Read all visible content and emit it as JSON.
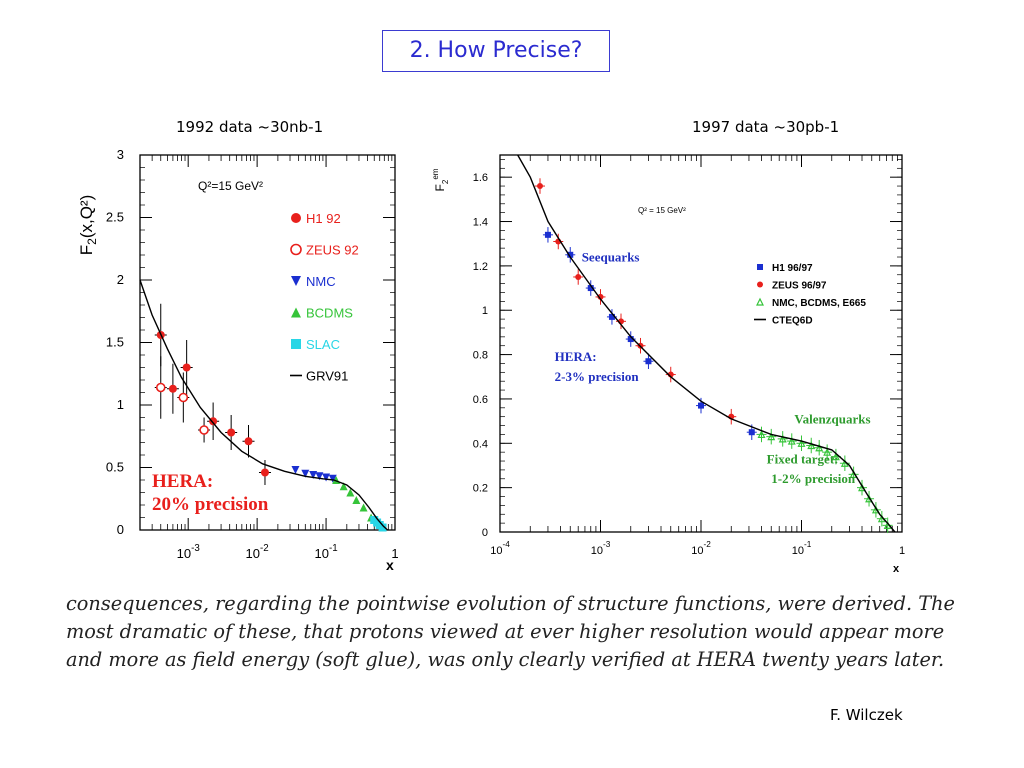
{
  "slide": {
    "title": "2. How Precise?",
    "left_caption": "1992 data  ~30nb-1",
    "right_caption": "1997 data  ~30pb-1",
    "quote_lines": [
      "consequences, regarding the pointwise evolution of structure functions, were derived. The",
      "most dramatic of these, that protons viewed at ever higher resolution would appear more",
      "and more as field energy (soft glue), was only clearly verified at HERA twenty years later."
    ],
    "credit": "F. Wilczek"
  },
  "chart_data": [
    {
      "type": "scatter",
      "x_scale": "log",
      "xlim": [
        0.0002,
        1
      ],
      "ylim": [
        0,
        3
      ],
      "xticks": [
        {
          "v": 0.001,
          "b": "10",
          "e": "-3"
        },
        {
          "v": 0.01,
          "b": "10",
          "e": "-2"
        },
        {
          "v": 0.1,
          "b": "10",
          "e": "-1"
        },
        {
          "v": 1,
          "b": "1",
          "e": ""
        }
      ],
      "yticks": [
        {
          "v": 0,
          "l": "0"
        },
        {
          "v": 0.5,
          "l": "0.5"
        },
        {
          "v": 1,
          "l": "1"
        },
        {
          "v": 1.5,
          "l": "1.5"
        },
        {
          "v": 2,
          "l": "2"
        },
        {
          "v": 2.5,
          "l": "2.5"
        },
        {
          "v": 3,
          "l": "3"
        }
      ],
      "xlabel": "x",
      "ylabel": "F2(x,Q²)",
      "annotation": "Q²=15 GeV²",
      "text_box": [
        "HERA:",
        "20% precision"
      ],
      "text_box_color": "#e8201c",
      "legend_position": "top-right",
      "series": [
        {
          "name": "H1 92",
          "marker": "circle",
          "color": "#e8201c",
          "points": [
            [
              0.0004,
              1.56,
              0.25
            ],
            [
              0.0006,
              1.13,
              0.2
            ],
            [
              0.00095,
              1.3,
              0.22
            ],
            [
              0.0023,
              0.87,
              0.15
            ],
            [
              0.0042,
              0.78,
              0.14
            ],
            [
              0.0075,
              0.71,
              0.13
            ],
            [
              0.013,
              0.46,
              0.1
            ]
          ]
        },
        {
          "name": "ZEUS 92",
          "marker": "circle-open",
          "color": "#e8201c",
          "points": [
            [
              0.0004,
              1.14,
              0.25
            ],
            [
              0.00085,
              1.06,
              0.2
            ],
            [
              0.0017,
              0.8,
              0.1
            ]
          ]
        },
        {
          "name": "NMC",
          "marker": "triangle-down",
          "color": "#1a2fd0",
          "points": [
            [
              0.036,
              0.48,
              0
            ],
            [
              0.05,
              0.45,
              0
            ],
            [
              0.065,
              0.44,
              0
            ],
            [
              0.08,
              0.43,
              0
            ],
            [
              0.1,
              0.42,
              0
            ],
            [
              0.125,
              0.41,
              0
            ]
          ]
        },
        {
          "name": "BCDMS",
          "marker": "triangle-up",
          "color": "#36c43a",
          "points": [
            [
              0.14,
              0.4,
              0
            ],
            [
              0.18,
              0.35,
              0
            ],
            [
              0.225,
              0.3,
              0
            ],
            [
              0.275,
              0.24,
              0
            ],
            [
              0.35,
              0.18,
              0
            ],
            [
              0.45,
              0.1,
              0
            ]
          ]
        },
        {
          "name": "SLAC",
          "marker": "square",
          "color": "#28d6e6",
          "points": [
            [
              0.5,
              0.08,
              0
            ],
            [
              0.55,
              0.06,
              0
            ],
            [
              0.6,
              0.04,
              0
            ],
            [
              0.66,
              0.02,
              0
            ]
          ]
        },
        {
          "name": "GRV91",
          "marker": "line",
          "color": "#000000",
          "points": [
            [
              0.0002,
              2.0
            ],
            [
              0.0003,
              1.72
            ],
            [
              0.0005,
              1.45
            ],
            [
              0.0008,
              1.22
            ],
            [
              0.0015,
              0.98
            ],
            [
              0.003,
              0.78
            ],
            [
              0.006,
              0.63
            ],
            [
              0.012,
              0.53
            ],
            [
              0.025,
              0.47
            ],
            [
              0.05,
              0.43
            ],
            [
              0.09,
              0.41
            ],
            [
              0.13,
              0.4
            ],
            [
              0.2,
              0.36
            ],
            [
              0.3,
              0.28
            ],
            [
              0.42,
              0.18
            ],
            [
              0.55,
              0.09
            ],
            [
              0.68,
              0.03
            ],
            [
              0.78,
              0.0
            ]
          ]
        }
      ]
    },
    {
      "type": "scatter",
      "x_scale": "log",
      "xlim": [
        0.0001,
        1
      ],
      "ylim": [
        0,
        1.7
      ],
      "xticks": [
        {
          "v": 0.0001,
          "b": "10",
          "e": "-4"
        },
        {
          "v": 0.001,
          "b": "10",
          "e": "-3"
        },
        {
          "v": 0.01,
          "b": "10",
          "e": "-2"
        },
        {
          "v": 0.1,
          "b": "10",
          "e": "-1"
        },
        {
          "v": 1,
          "b": "1",
          "e": ""
        }
      ],
      "yticks": [
        {
          "v": 0,
          "l": "0"
        },
        {
          "v": 0.2,
          "l": "0.2"
        },
        {
          "v": 0.4,
          "l": "0.4"
        },
        {
          "v": 0.6,
          "l": "0.6"
        },
        {
          "v": 0.8,
          "l": "0.8"
        },
        {
          "v": 1,
          "l": "1"
        },
        {
          "v": 1.2,
          "l": "1.2"
        },
        {
          "v": 1.4,
          "l": "1.4"
        },
        {
          "v": 1.6,
          "l": "1.6"
        }
      ],
      "xlabel": "x",
      "ylabel": "F2em",
      "annotation": "Q² = 15 GeV²",
      "labels": [
        {
          "text": "Seequarks",
          "color": "#2030c0",
          "x": 0.00065,
          "y": 1.22
        },
        {
          "text": "HERA:",
          "color": "#2030c0",
          "x": 0.00035,
          "y": 0.77
        },
        {
          "text": "2-3% precision",
          "color": "#2030c0",
          "x": 0.00035,
          "y": 0.68
        },
        {
          "text": "Valenzquarks",
          "color": "#2e9b2e",
          "x": 0.085,
          "y": 0.49
        },
        {
          "text": "Fixed target:",
          "color": "#2e9b2e",
          "x": 0.045,
          "y": 0.31
        },
        {
          "text": "1-2% precision",
          "color": "#2e9b2e",
          "x": 0.05,
          "y": 0.22
        }
      ],
      "legend_position": "right",
      "series": [
        {
          "name": "H1 96/97",
          "marker": "square",
          "color": "#1a2fd0",
          "points": [
            [
              0.0003,
              1.34
            ],
            [
              0.0005,
              1.25
            ],
            [
              0.0008,
              1.1
            ],
            [
              0.0013,
              0.97
            ],
            [
              0.002,
              0.87
            ],
            [
              0.003,
              0.77
            ],
            [
              0.01,
              0.57
            ],
            [
              0.032,
              0.45
            ]
          ]
        },
        {
          "name": "ZEUS 96/97",
          "marker": "circle",
          "color": "#e8201c",
          "points": [
            [
              0.00025,
              1.56
            ],
            [
              0.00038,
              1.31
            ],
            [
              0.0006,
              1.15
            ],
            [
              0.001,
              1.06
            ],
            [
              0.0016,
              0.95
            ],
            [
              0.0025,
              0.84
            ],
            [
              0.005,
              0.71
            ],
            [
              0.02,
              0.52
            ]
          ]
        },
        {
          "name": "NMC, BCDMS, E665",
          "marker": "triangle-open",
          "color": "#36c43a",
          "points": [
            [
              0.04,
              0.44
            ],
            [
              0.05,
              0.43
            ],
            [
              0.065,
              0.42
            ],
            [
              0.08,
              0.41
            ],
            [
              0.1,
              0.4
            ],
            [
              0.125,
              0.39
            ],
            [
              0.15,
              0.38
            ],
            [
              0.18,
              0.36
            ],
            [
              0.22,
              0.34
            ],
            [
              0.27,
              0.31
            ],
            [
              0.33,
              0.26
            ],
            [
              0.4,
              0.2
            ],
            [
              0.47,
              0.15
            ],
            [
              0.55,
              0.1
            ],
            [
              0.63,
              0.06
            ],
            [
              0.72,
              0.03
            ]
          ]
        },
        {
          "name": "CTEQ6D",
          "marker": "line",
          "color": "#000000",
          "points": [
            [
              0.00015,
              1.7
            ],
            [
              0.0002,
              1.6
            ],
            [
              0.0003,
              1.4
            ],
            [
              0.0005,
              1.24
            ],
            [
              0.001,
              1.05
            ],
            [
              0.002,
              0.88
            ],
            [
              0.005,
              0.7
            ],
            [
              0.01,
              0.59
            ],
            [
              0.02,
              0.51
            ],
            [
              0.05,
              0.44
            ],
            [
              0.1,
              0.41
            ],
            [
              0.2,
              0.37
            ],
            [
              0.3,
              0.3
            ],
            [
              0.45,
              0.17
            ],
            [
              0.6,
              0.08
            ],
            [
              0.75,
              0.03
            ],
            [
              0.85,
              0.0
            ]
          ]
        }
      ]
    }
  ]
}
